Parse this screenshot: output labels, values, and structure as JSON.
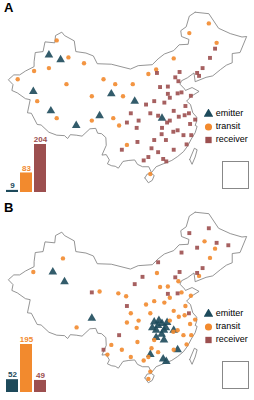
{
  "chart_data": [
    {
      "type": "scatter",
      "title": "A",
      "legend": "right",
      "series": [
        {
          "name": "emitter",
          "color": "#1d4a5b",
          "marker": "triangle",
          "x": [
            84,
            87,
            80,
            84.5,
            91,
            97,
            100,
            106,
            113
          ],
          "values": [
            44.5,
            43.5,
            37,
            33,
            30,
            32,
            36.5,
            35,
            31.5
          ]
        },
        {
          "name": "transit",
          "color": "#f28a2e",
          "marker": "circle",
          "x": [
            76,
            80.2,
            84,
            86,
            89,
            93,
            88.5,
            81,
            86,
            95,
            98,
            101,
            103,
            100.5,
            102,
            95,
            105.5,
            109.5,
            111.5,
            116,
            120,
            125,
            127,
            104,
            110
          ],
          "values": [
            39.5,
            41.2,
            41.8,
            47.5,
            44,
            42.8,
            38.5,
            35,
            31.5,
            36,
            39.5,
            38.5,
            36,
            31.5,
            30,
            31,
            38.5,
            40.6,
            41.5,
            43.8,
            49,
            51,
            47,
            26,
            20
          ]
        },
        {
          "name": "receiver",
          "color": "#9c4f4f",
          "marker": "square",
          "x": [
            104,
            106.5,
            108.9,
            112.5,
            114.5,
            116.4,
            117.2,
            118,
            117,
            120.4,
            113.6,
            114.3,
            112.9,
            115.9,
            117.3,
            118.8,
            120.2,
            121.5,
            119.3,
            113.3,
            114.1,
            108.3,
            106.7,
            102.7,
            110.3,
            111.7,
            123.4,
            125.3,
            126.6,
            122.5,
            115,
            111,
            110,
            112,
            116,
            119,
            115,
            113,
            111,
            114,
            117,
            118.5,
            120.5,
            116,
            112,
            109.5,
            107,
            105,
            117.5,
            122,
            119.9,
            114.5
          ],
          "values": [
            30.6,
            29.5,
            34.3,
            37.9,
            38,
            39.9,
            39.1,
            36.8,
            36.6,
            36.1,
            34.7,
            30.6,
            28.2,
            28.7,
            31.8,
            32.1,
            30.3,
            31.2,
            26.1,
            23.1,
            22.6,
            22.8,
            26.6,
            25,
            25.3,
            40.8,
            41.8,
            43.9,
            45.8,
            40.2,
            35.7,
            35,
            32.5,
            32,
            33,
            34,
            31,
            29.5,
            27,
            27,
            29,
            28,
            28,
            25,
            24.5,
            23.5,
            31,
            32.5,
            41,
            40.8,
            32.5,
            36.5
          ]
        }
      ],
      "inset_bar": {
        "type": "bar",
        "categories": [
          "emitter",
          "transit",
          "receiver"
        ],
        "values": [
          9,
          83,
          204
        ],
        "colors": [
          "#1d4a5b",
          "#f28a2e",
          "#9c4f4f"
        ],
        "data_labels": true
      }
    },
    {
      "type": "scatter",
      "title": "B",
      "legend": "right",
      "series": [
        {
          "name": "emitter",
          "color": "#1d4a5b",
          "marker": "triangle",
          "x": [
            111,
            112,
            113,
            114.3,
            112.2,
            111.5,
            112.9,
            113.5,
            110.5,
            114,
            113.5,
            111.5,
            113.3,
            114.1,
            110,
            117,
            116,
            85,
            88,
            95
          ],
          "values": [
            30.7,
            30,
            30.4,
            30.6,
            31,
            29,
            28.2,
            29,
            29.5,
            29.5,
            27,
            27.5,
            23.1,
            22.6,
            24,
            25,
            29,
            41,
            39,
            31.5
          ]
        },
        {
          "name": "transit",
          "color": "#f28a2e",
          "marker": "circle",
          "x": [
            104,
            106.5,
            108.9,
            112.5,
            114.5,
            117.2,
            118,
            120.4,
            113.6,
            115.9,
            117.3,
            118.8,
            120.2,
            121.5,
            119.3,
            108.3,
            106.7,
            102.7,
            110.3,
            111.7,
            125.3,
            122.5,
            115,
            111,
            110,
            116,
            119,
            115,
            111,
            117,
            118.5,
            120.5,
            116,
            112,
            109.5,
            107,
            105,
            101.8,
            103.8,
            91.1,
            87.6,
            80,
            97,
            100,
            99,
            105,
            110,
            109.5,
            126.6,
            123.9
          ],
          "values": [
            30.6,
            29.5,
            34.3,
            37.9,
            38,
            39.1,
            36.8,
            36.1,
            34.7,
            28.7,
            31.8,
            32.1,
            30.3,
            31.2,
            26.1,
            22.8,
            26.6,
            25,
            25.3,
            40.8,
            43.9,
            40.2,
            35.7,
            35,
            32.5,
            33,
            34,
            31,
            27,
            29,
            28,
            28,
            25,
            24.5,
            23.5,
            31,
            32.5,
            36.6,
            36,
            29.6,
            43.8,
            41,
            37,
            26,
            24,
            23.5,
            20.5,
            19,
            45.8,
            47.3
          ]
        },
        {
          "name": "receiver",
          "color": "#9c4f4f",
          "marker": "square",
          "x": [
            116.4,
            114.5,
            117,
            119.9,
            122,
            123.4,
            117.5,
            118,
            122,
            127,
            130,
            125,
            120,
            112,
            108,
            106,
            104,
            102,
            98,
            95
          ],
          "values": [
            39.9,
            36.5,
            36.6,
            32.5,
            40.8,
            41.8,
            41,
            45,
            46,
            47,
            46.5,
            50,
            49,
            43,
            40,
            38.5,
            34,
            28,
            25,
            36.8
          ]
        }
      ],
      "inset_bar": {
        "type": "bar",
        "categories": [
          "emitter",
          "transit",
          "receiver"
        ],
        "values": [
          52,
          195,
          49
        ],
        "colors": [
          "#1d4a5b",
          "#f28a2e",
          "#9c4f4f"
        ],
        "data_labels": true
      }
    }
  ]
}
